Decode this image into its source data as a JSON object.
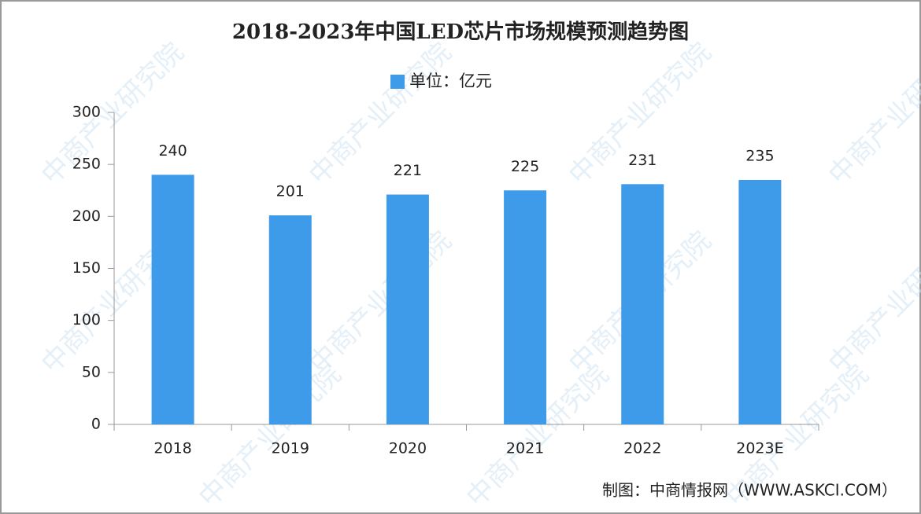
{
  "chart_data": {
    "type": "bar",
    "title": "2018-2023年中国LED芯片市场规模预测趋势图",
    "categories": [
      "2018",
      "2019",
      "2020",
      "2021",
      "2022",
      "2023E"
    ],
    "series": [
      {
        "name": "单位：亿元",
        "color": "#3d9be9",
        "values": [
          240,
          201,
          221,
          225,
          231,
          235
        ]
      }
    ],
    "ylim": [
      0,
      300
    ],
    "yticks": [
      0,
      50,
      100,
      150,
      200,
      250,
      300
    ],
    "source": "制图：中商情报网（WWW.ASKCI.COM）",
    "watermark": "中商产业研究院"
  }
}
